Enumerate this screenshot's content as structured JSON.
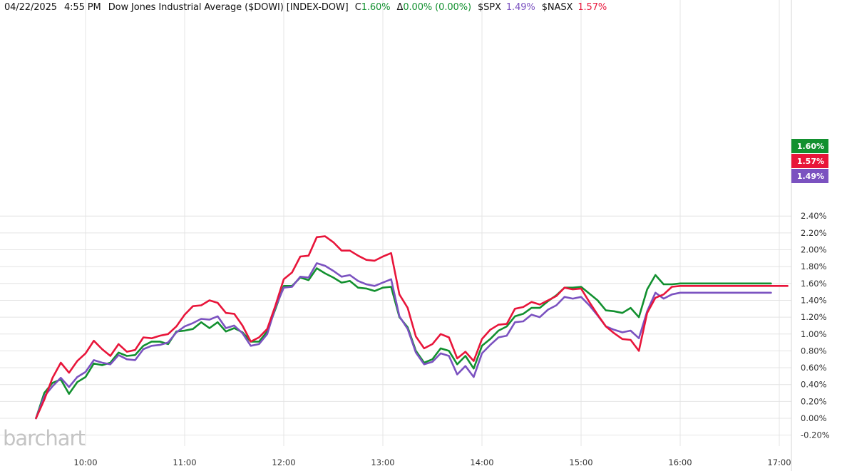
{
  "header": {
    "date": "04/22/2025",
    "time": "4:55 PM",
    "symbol_name": "Dow Jones Industrial Average ($DOWI) [INDEX-DOW]",
    "close_prefix": "C",
    "close_value": "1.60%",
    "change_prefix": "Δ",
    "change_value": "0.00% (0.00%)",
    "spx_label": "$SPX",
    "spx_value": "1.49%",
    "nasx_label": "$NASX",
    "nasx_value": "1.57%"
  },
  "watermark": "barchart",
  "colors": {
    "dowi": "#12902f",
    "spx": "#7b52c0",
    "nasx": "#e8153a",
    "grid": "#e4e4e4",
    "axis_text": "#333333"
  },
  "chart_data": {
    "type": "line",
    "x_ticks": [
      "10:00",
      "11:00",
      "12:00",
      "13:00",
      "14:00",
      "15:00",
      "16:00",
      "17:00"
    ],
    "y_ticks": [
      "2.40%",
      "2.20%",
      "2.00%",
      "1.80%",
      "1.60%",
      "1.40%",
      "1.20%",
      "1.00%",
      "0.80%",
      "0.60%",
      "0.40%",
      "0.20%",
      "0.00%",
      "-0.20%"
    ],
    "xlim": [
      "9:30",
      "17:10"
    ],
    "ylim": [
      -0.2,
      2.45
    ],
    "x_unit": "time of day",
    "y_unit": "% change",
    "last_value_tags": [
      {
        "series": "$DOWI",
        "label": "1.60%"
      },
      {
        "series": "$NASX",
        "label": "1.57%"
      },
      {
        "series": "$SPX",
        "label": "1.49%"
      }
    ],
    "series": [
      {
        "name": "$DOWI",
        "color": "#12902f",
        "x": [
          "9:30",
          "9:35",
          "9:40",
          "9:45",
          "9:50",
          "9:55",
          "10:00",
          "10:05",
          "10:10",
          "10:15",
          "10:20",
          "10:25",
          "10:30",
          "10:35",
          "10:40",
          "10:45",
          "10:50",
          "10:55",
          "11:00",
          "11:05",
          "11:10",
          "11:15",
          "11:20",
          "11:25",
          "11:30",
          "11:35",
          "11:40",
          "11:45",
          "11:50",
          "11:55",
          "12:00",
          "12:05",
          "12:10",
          "12:15",
          "12:20",
          "12:25",
          "12:30",
          "12:35",
          "12:40",
          "12:45",
          "12:50",
          "12:55",
          "13:00",
          "13:05",
          "13:10",
          "13:15",
          "13:20",
          "13:25",
          "13:30",
          "13:35",
          "13:40",
          "13:45",
          "13:50",
          "13:55",
          "14:00",
          "14:05",
          "14:10",
          "14:15",
          "14:20",
          "14:25",
          "14:30",
          "14:35",
          "14:40",
          "14:45",
          "14:50",
          "14:55",
          "15:00",
          "15:05",
          "15:10",
          "15:15",
          "15:20",
          "15:25",
          "15:30",
          "15:35",
          "15:40",
          "15:45",
          "15:50",
          "15:55",
          "16:00",
          "16:55"
        ],
        "values": [
          0.0,
          0.3,
          0.42,
          0.46,
          0.29,
          0.43,
          0.49,
          0.65,
          0.63,
          0.66,
          0.78,
          0.74,
          0.75,
          0.86,
          0.91,
          0.91,
          0.88,
          1.03,
          1.04,
          1.06,
          1.14,
          1.07,
          1.14,
          1.03,
          1.07,
          1.02,
          0.91,
          0.91,
          1.03,
          1.3,
          1.57,
          1.57,
          1.67,
          1.64,
          1.78,
          1.72,
          1.67,
          1.61,
          1.63,
          1.55,
          1.54,
          1.51,
          1.55,
          1.56,
          1.2,
          1.08,
          0.8,
          0.66,
          0.7,
          0.83,
          0.8,
          0.64,
          0.74,
          0.59,
          0.86,
          0.94,
          1.04,
          1.09,
          1.21,
          1.24,
          1.31,
          1.31,
          1.39,
          1.46,
          1.55,
          1.55,
          1.56,
          1.48,
          1.4,
          1.28,
          1.27,
          1.25,
          1.31,
          1.2,
          1.53,
          1.7,
          1.59,
          1.59,
          1.6,
          1.6
        ]
      },
      {
        "name": "$SPX",
        "color": "#7b52c0",
        "x": [
          "9:30",
          "9:35",
          "9:40",
          "9:45",
          "9:50",
          "9:55",
          "10:00",
          "10:05",
          "10:10",
          "10:15",
          "10:20",
          "10:25",
          "10:30",
          "10:35",
          "10:40",
          "10:45",
          "10:50",
          "10:55",
          "11:00",
          "11:05",
          "11:10",
          "11:15",
          "11:20",
          "11:25",
          "11:30",
          "11:35",
          "11:40",
          "11:45",
          "11:50",
          "11:55",
          "12:00",
          "12:05",
          "12:10",
          "12:15",
          "12:20",
          "12:25",
          "12:30",
          "12:35",
          "12:40",
          "12:45",
          "12:50",
          "12:55",
          "13:00",
          "13:05",
          "13:10",
          "13:15",
          "13:20",
          "13:25",
          "13:30",
          "13:35",
          "13:40",
          "13:45",
          "13:50",
          "13:55",
          "14:00",
          "14:05",
          "14:10",
          "14:15",
          "14:20",
          "14:25",
          "14:30",
          "14:35",
          "14:40",
          "14:45",
          "14:50",
          "14:55",
          "15:00",
          "15:05",
          "15:10",
          "15:15",
          "15:20",
          "15:25",
          "15:30",
          "15:35",
          "15:40",
          "15:45",
          "15:50",
          "15:55",
          "16:00",
          "16:55"
        ],
        "values": [
          0.0,
          0.26,
          0.38,
          0.48,
          0.37,
          0.49,
          0.55,
          0.69,
          0.66,
          0.64,
          0.75,
          0.7,
          0.69,
          0.82,
          0.86,
          0.87,
          0.9,
          1.02,
          1.09,
          1.13,
          1.18,
          1.17,
          1.21,
          1.07,
          1.1,
          1.01,
          0.86,
          0.88,
          1.0,
          1.32,
          1.55,
          1.56,
          1.68,
          1.67,
          1.84,
          1.81,
          1.75,
          1.68,
          1.7,
          1.63,
          1.59,
          1.57,
          1.61,
          1.65,
          1.21,
          1.06,
          0.78,
          0.64,
          0.67,
          0.77,
          0.74,
          0.52,
          0.62,
          0.49,
          0.77,
          0.87,
          0.96,
          0.98,
          1.14,
          1.15,
          1.23,
          1.2,
          1.29,
          1.34,
          1.44,
          1.42,
          1.44,
          1.34,
          1.22,
          1.09,
          1.05,
          1.02,
          1.04,
          0.95,
          1.27,
          1.49,
          1.42,
          1.47,
          1.49,
          1.49
        ]
      },
      {
        "name": "$NASX",
        "color": "#e8153a",
        "x": [
          "9:30",
          "9:35",
          "9:40",
          "9:45",
          "9:50",
          "9:55",
          "10:00",
          "10:05",
          "10:10",
          "10:15",
          "10:20",
          "10:25",
          "10:30",
          "10:35",
          "10:40",
          "10:45",
          "10:50",
          "10:55",
          "11:00",
          "11:05",
          "11:10",
          "11:15",
          "11:20",
          "11:25",
          "11:30",
          "11:35",
          "11:40",
          "11:45",
          "11:50",
          "11:55",
          "12:00",
          "12:05",
          "12:10",
          "12:15",
          "12:20",
          "12:25",
          "12:30",
          "12:35",
          "12:40",
          "12:45",
          "12:50",
          "12:55",
          "13:00",
          "13:05",
          "13:10",
          "13:15",
          "13:20",
          "13:25",
          "13:30",
          "13:35",
          "13:40",
          "13:45",
          "13:50",
          "13:55",
          "14:00",
          "14:05",
          "14:10",
          "14:15",
          "14:20",
          "14:25",
          "14:30",
          "14:35",
          "14:40",
          "14:45",
          "14:50",
          "14:55",
          "15:00",
          "15:05",
          "15:10",
          "15:15",
          "15:20",
          "15:25",
          "15:30",
          "15:35",
          "15:40",
          "15:45",
          "15:50",
          "15:55",
          "16:00",
          "17:05"
        ],
        "values": [
          0.0,
          0.22,
          0.48,
          0.66,
          0.54,
          0.68,
          0.77,
          0.92,
          0.82,
          0.74,
          0.88,
          0.79,
          0.81,
          0.96,
          0.95,
          0.98,
          1.0,
          1.09,
          1.23,
          1.33,
          1.34,
          1.4,
          1.37,
          1.25,
          1.24,
          1.1,
          0.91,
          0.96,
          1.06,
          1.34,
          1.65,
          1.73,
          1.92,
          1.93,
          2.15,
          2.16,
          2.09,
          1.99,
          1.99,
          1.93,
          1.88,
          1.87,
          1.92,
          1.96,
          1.47,
          1.31,
          0.97,
          0.83,
          0.88,
          1.0,
          0.96,
          0.71,
          0.79,
          0.68,
          0.94,
          1.05,
          1.11,
          1.12,
          1.3,
          1.32,
          1.38,
          1.35,
          1.4,
          1.45,
          1.55,
          1.53,
          1.54,
          1.38,
          1.23,
          1.09,
          1.01,
          0.94,
          0.93,
          0.8,
          1.25,
          1.43,
          1.47,
          1.56,
          1.57,
          1.57
        ]
      }
    ]
  }
}
